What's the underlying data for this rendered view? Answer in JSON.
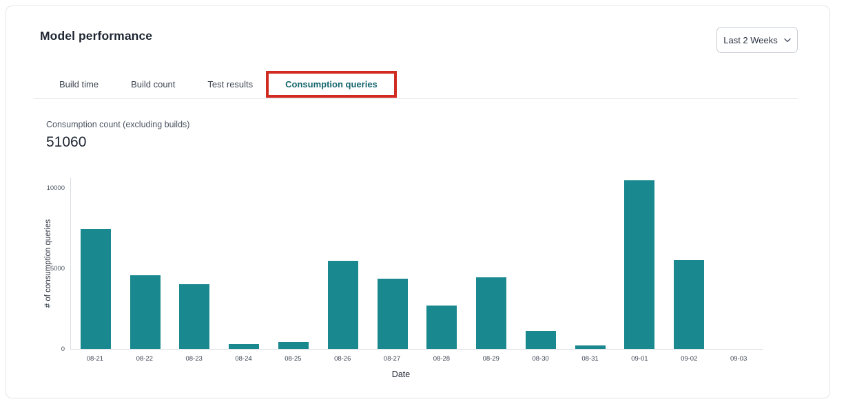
{
  "header": {
    "title": "Model performance",
    "date_range": "Last 2 Weeks"
  },
  "tabs": [
    {
      "label": "Build time",
      "active": false
    },
    {
      "label": "Build count",
      "active": false
    },
    {
      "label": "Test results",
      "active": false
    },
    {
      "label": "Consumption queries",
      "active": true,
      "annotated": true
    }
  ],
  "metric": {
    "label": "Consumption count (excluding builds)",
    "value": "51060"
  },
  "chart_data": {
    "type": "bar",
    "title": "",
    "xlabel": "Date",
    "ylabel": "# of consumption queries",
    "categories": [
      "08-21",
      "08-22",
      "08-23",
      "08-24",
      "08-25",
      "08-26",
      "08-27",
      "08-28",
      "08-29",
      "08-30",
      "08-31",
      "09-01",
      "09-02",
      "09-03"
    ],
    "values": [
      7430,
      4580,
      4040,
      290,
      430,
      5470,
      4350,
      2680,
      4460,
      1120,
      200,
      10480,
      5530,
      0
    ],
    "yticks": [
      0,
      5000,
      10000
    ],
    "ylim": [
      0,
      10700
    ],
    "grid": false,
    "legend": false,
    "bar_color": "#19898f"
  },
  "colors": {
    "bar_teal": "#19898f",
    "active_tab_teal": "#14656d",
    "annotation_red": "#d02b20",
    "card_border": "#e4e6ea",
    "divider": "#e3e5e9",
    "axis_line": "#d9dce1",
    "title_text": "#1e2632",
    "muted_text": "#4a5260"
  }
}
